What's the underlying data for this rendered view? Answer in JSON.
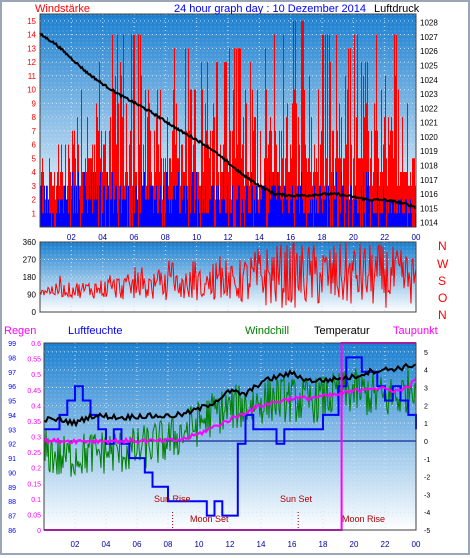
{
  "header": {
    "left_label": "Windstärke",
    "title": "24 hour graph day : 10 Dezember 2014",
    "right_label": "Luftdruck"
  },
  "mid_header": {
    "regen": "Regen",
    "luftfeuchte": "Luftfeuchte",
    "windchill": "Windchill",
    "temperatur": "Temperatur",
    "taupunkt": "Taupunkt"
  },
  "compass_letters": [
    "N",
    "W",
    "S",
    "O",
    "N"
  ],
  "events": [
    "Sun Rise",
    "Moon Set",
    "Sun Set",
    "Moon Rise"
  ],
  "colors": {
    "wind_gust": "#ff0000",
    "wind_avg": "#0000ff",
    "pressure": "#000000",
    "direction": "#ff0000",
    "humidity": "#0000ff",
    "windchill": "#008000",
    "temperature": "#000000",
    "dewpoint": "#ff00ff",
    "rain": "#ff00ff",
    "panel_top": "#1a82d4",
    "panel_bottom": "#ffffff"
  },
  "chart_data": [
    {
      "type": "bar",
      "name": "wind-and-pressure",
      "x_ticks": [
        "02",
        "04",
        "06",
        "08",
        "10",
        "12",
        "14",
        "16",
        "18",
        "20",
        "22",
        "00"
      ],
      "y_left_ticks": [
        "1",
        "2",
        "3",
        "4",
        "5",
        "6",
        "7",
        "8",
        "9",
        "10",
        "11",
        "12",
        "13",
        "14",
        "15"
      ],
      "y_left_range": [
        0,
        15.5
      ],
      "y_right_ticks": [
        "1014",
        "1015",
        "1016",
        "1017",
        "1018",
        "1019",
        "1020",
        "1021",
        "1022",
        "1023",
        "1024",
        "1025",
        "1026",
        "1027",
        "1028"
      ],
      "y_right_range": [
        1013.7,
        1028.6
      ],
      "pressure": {
        "hours": [
          0,
          1,
          2,
          3,
          4,
          5,
          6,
          7,
          8,
          9,
          10,
          11,
          12,
          13,
          14,
          15,
          16,
          17,
          18,
          19,
          20,
          21,
          22,
          23,
          24
        ],
        "values": [
          1027.2,
          1026.5,
          1025.5,
          1024.5,
          1023.7,
          1023.0,
          1022.4,
          1021.8,
          1021.1,
          1020.4,
          1019.8,
          1019.1,
          1018.2,
          1017.3,
          1016.6,
          1016.0,
          1015.9,
          1015.9,
          1016.0,
          1016.0,
          1015.8,
          1015.6,
          1015.6,
          1015.4,
          1015.1
        ]
      },
      "gust_hourly_max": [
        6,
        6,
        14,
        12,
        14,
        14,
        14,
        14,
        13,
        13,
        12,
        12,
        13,
        14,
        14,
        14,
        15,
        12,
        14,
        13,
        14,
        14,
        14,
        9
      ],
      "avg_hourly_max": [
        3,
        3,
        4,
        4,
        4,
        4,
        4,
        4,
        4,
        4,
        4,
        4,
        4,
        4,
        4,
        4,
        4,
        3,
        4,
        4,
        4,
        4,
        3,
        2
      ],
      "grid": true
    },
    {
      "type": "line",
      "name": "wind-direction",
      "x_ticks": [
        "02",
        "04",
        "06",
        "08",
        "10",
        "12",
        "14",
        "16",
        "18",
        "20",
        "22",
        "00"
      ],
      "y_ticks": [
        "0",
        "90",
        "180",
        "270",
        "360"
      ],
      "y_range": [
        0,
        360
      ],
      "direction_band": {
        "hours": [
          0,
          3,
          6,
          9,
          12,
          14,
          16,
          18,
          20,
          22,
          24
        ],
        "low": [
          80,
          70,
          60,
          60,
          55,
          20,
          20,
          20,
          20,
          20,
          40
        ],
        "high": [
          140,
          160,
          200,
          210,
          230,
          340,
          360,
          350,
          360,
          350,
          300
        ]
      }
    },
    {
      "type": "line",
      "name": "temperature-humidity-rain",
      "x_ticks": [
        "02",
        "04",
        "06",
        "08",
        "10",
        "12",
        "14",
        "16",
        "18",
        "20",
        "22",
        "00"
      ],
      "y_regen_ticks": [
        "0",
        "0.05",
        "0.1",
        "0.15",
        "0.2",
        "0.25",
        "0.3",
        "0.35",
        "0.4",
        "0.45",
        "0.5",
        "0.55",
        "0.6"
      ],
      "y_regen_range": [
        0,
        0.6
      ],
      "y_humidity_ticks": [
        "86",
        "87",
        "88",
        "89",
        "90",
        "91",
        "92",
        "93",
        "94",
        "95",
        "96",
        "97",
        "98",
        "99"
      ],
      "y_humidity_range": [
        86,
        99
      ],
      "y_temp_ticks": [
        "-5",
        "-4",
        "-3",
        "-2",
        "-1",
        "0",
        "1",
        "2",
        "3",
        "4",
        "5"
      ],
      "y_temp_range": [
        -5,
        5.5
      ],
      "temperature": {
        "hours": [
          0,
          1,
          2,
          3,
          4,
          5,
          6,
          7,
          8,
          9,
          10,
          11,
          12,
          13,
          14,
          15,
          16,
          17,
          18,
          19,
          20,
          21,
          22,
          23,
          24
        ],
        "values": [
          1.2,
          1.2,
          1.0,
          1.4,
          1.4,
          1.3,
          1.4,
          1.4,
          1.4,
          1.5,
          1.8,
          2.2,
          2.8,
          2.6,
          3.3,
          3.6,
          3.8,
          3.4,
          3.4,
          3.5,
          3.6,
          3.9,
          4.0,
          4.1,
          4.3
        ]
      },
      "dewpoint": {
        "hours": [
          0,
          1,
          2,
          3,
          4,
          5,
          6,
          7,
          8,
          9,
          10,
          11,
          12,
          13,
          14,
          15,
          16,
          17,
          18,
          19,
          20,
          21,
          22,
          23,
          24
        ],
        "values": [
          0.0,
          0.0,
          0.0,
          0.0,
          0.0,
          0.0,
          0.0,
          0.0,
          0.0,
          0.1,
          0.4,
          0.8,
          1.2,
          1.6,
          2.0,
          2.2,
          2.4,
          2.4,
          2.5,
          2.6,
          2.8,
          3.0,
          2.9,
          2.8,
          3.4
        ]
      },
      "windchill": {
        "hours": [
          0,
          1,
          2,
          3,
          4,
          5,
          6,
          7,
          8,
          9,
          10,
          11,
          12,
          13,
          14,
          15,
          16,
          17,
          18,
          19,
          20,
          21,
          22,
          23,
          24
        ],
        "values": [
          -0.5,
          -1.0,
          -0.8,
          -0.7,
          -0.6,
          -0.6,
          -0.5,
          -0.2,
          0.0,
          0.5,
          1.0,
          1.6,
          1.8,
          2.0,
          2.2,
          2.4,
          2.3,
          2.2,
          2.4,
          2.6,
          2.8,
          2.6,
          2.4,
          2.5,
          3.5
        ]
      },
      "humidity": {
        "hours": [
          0,
          0.5,
          1,
          1.5,
          2,
          2.5,
          3,
          3.5,
          4,
          4.5,
          5,
          5.5,
          6,
          6.5,
          7,
          7.5,
          8,
          8.5,
          9,
          9.5,
          10,
          10.5,
          11,
          11.5,
          12,
          12.5,
          13,
          13.5,
          14,
          14.5,
          15,
          15.5,
          16,
          16.5,
          17,
          17.5,
          18,
          18.5,
          19,
          19.5,
          20,
          20.5,
          21,
          21.5,
          22,
          22.5,
          23,
          23.5,
          24
        ],
        "values": [
          93,
          93,
          94,
          95,
          96,
          95,
          94,
          93,
          92,
          93,
          92,
          91,
          91,
          90,
          89,
          89,
          88,
          88,
          88,
          88,
          88,
          87,
          88,
          87,
          87,
          92,
          94,
          93,
          93,
          93,
          92,
          93,
          93,
          93,
          93,
          93,
          94,
          94,
          96,
          98,
          98,
          97,
          97,
          96,
          95,
          96,
          95,
          94,
          93
        ]
      },
      "rain": {
        "hours": [
          0,
          19.2,
          19.2,
          24
        ],
        "values": [
          0,
          0,
          0.6,
          0.6
        ]
      },
      "event_hours": [
        8.3,
        8.3,
        16.4,
        16.4
      ],
      "grid": true
    }
  ]
}
